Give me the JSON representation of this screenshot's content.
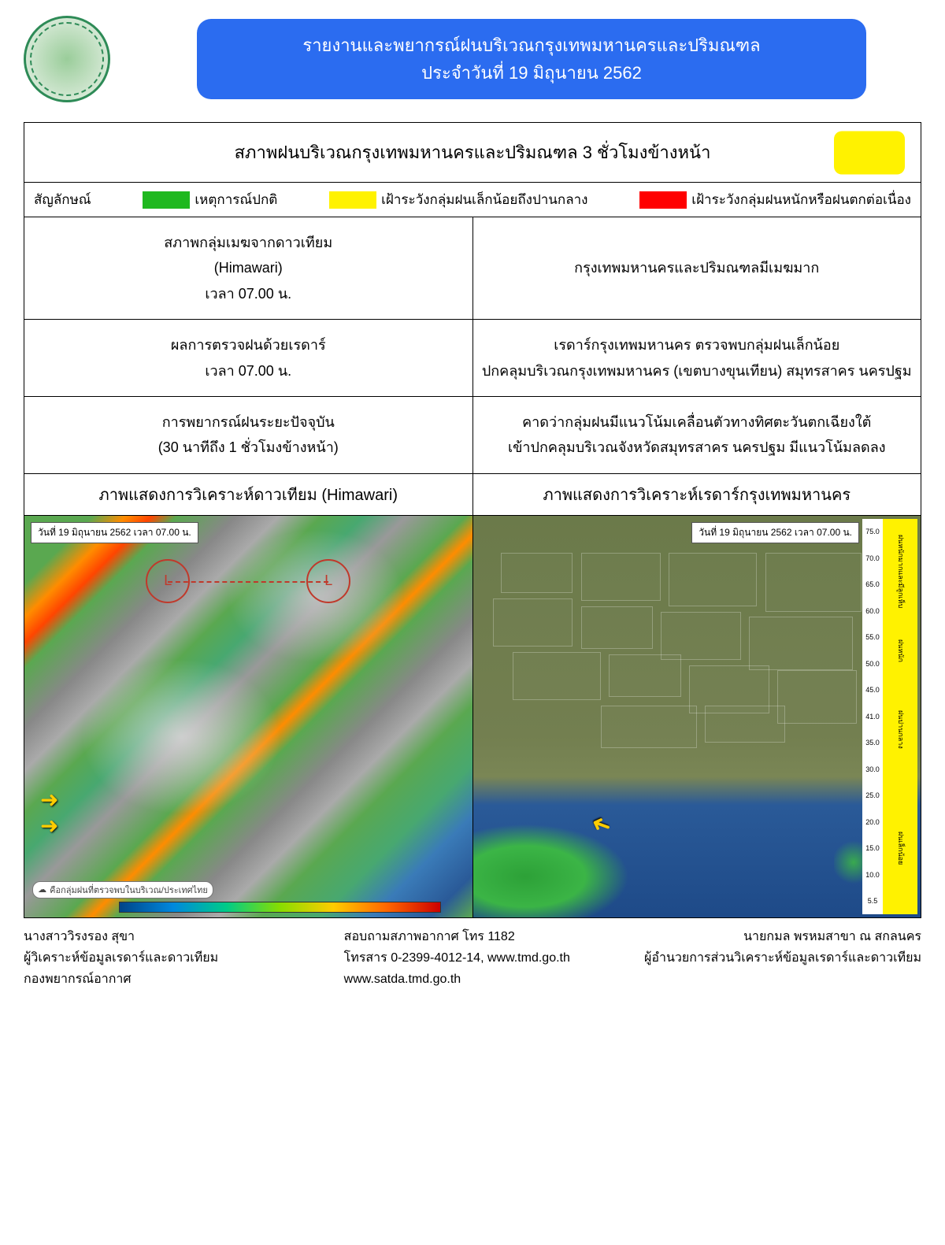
{
  "header": {
    "title_line1": "รายงานและพยากรณ์ฝนบริเวณกรุงเทพมหานครและปริมณฑล",
    "title_line2": "ประจำวันที่ 19 มิถุนายน 2562",
    "banner_bg": "#2b6cf0",
    "banner_fg": "#ffffff"
  },
  "section": {
    "title": "สภาพฝนบริเวณกรุงเทพมหานครและปริมณฑล 3 ชั่วโมงข้างหน้า",
    "badge_color": "#fff200"
  },
  "legend": {
    "label": "สัญลักษณ์",
    "items": [
      {
        "color": "#1fb81f",
        "text": "เหตุการณ์ปกติ"
      },
      {
        "color": "#fff200",
        "text": "เฝ้าระวังกลุ่มฝนเล็กน้อยถึงปานกลาง"
      },
      {
        "color": "#ff0000",
        "text": "เฝ้าระวังกลุ่มฝนหนักหรือฝนตกต่อเนื่อง"
      }
    ]
  },
  "rows": [
    {
      "left_l1": "สภาพกลุ่มเมฆจากดาวเทียม",
      "left_l2": "(Himawari)",
      "left_l3": "เวลา 07.00 น.",
      "right_l1": "กรุงเทพมหานครและปริมณฑลมีเมฆมาก",
      "right_l2": ""
    },
    {
      "left_l1": "ผลการตรวจฝนด้วยเรดาร์",
      "left_l2": "เวลา 07.00 น.",
      "left_l3": "",
      "right_l1": "เรดาร์กรุงเทพมหานคร ตรวจพบกลุ่มฝนเล็กน้อย",
      "right_l2": "ปกคลุมบริเวณกรุงเทพมหานคร (เขตบางขุนเทียน) สมุทรสาคร นครปฐม"
    },
    {
      "left_l1": "การพยากรณ์ฝนระยะปัจจุบัน",
      "left_l2": "(30 นาทีถึง 1 ชั่วโมงข้างหน้า)",
      "left_l3": "",
      "right_l1": "คาดว่ากลุ่มฝนมีแนวโน้มเคลื่อนตัวทางทิศตะวันตกเฉียงใต้",
      "right_l2": "เข้าปกคลุมบริเวณจังหวัดสมุทรสาคร นครปฐม มีแนวโน้มลดลง"
    }
  ],
  "maps": {
    "sat_title": "ภาพแสดงการวิเคราะห์ดาวเทียม (Himawari)",
    "radar_title": "ภาพแสดงการวิเคราะห์เรดาร์กรุงเทพมหานคร",
    "sat_timestamp": "วันที่ 19 มิถุนายน 2562 เวลา 07.00 น.",
    "radar_timestamp": "วันที่ 19 มิถุนายน 2562 เวลา 07.00 น.",
    "sat_cloudnote": "คือกลุ่มฝนที่ตรวจพบในบริเวณ/ประเทศไทย",
    "radar_scale": [
      {
        "v": "75.0",
        "c": "#ffffff"
      },
      {
        "v": "70.0",
        "c": "#f0f0f0"
      },
      {
        "v": "65.0",
        "c": "#e0d0e0"
      },
      {
        "v": "60.0",
        "c": "#d0a0d0"
      },
      {
        "v": "55.0",
        "c": "#ff33cc"
      },
      {
        "v": "50.0",
        "c": "#cc0099"
      },
      {
        "v": "45.0",
        "c": "#ff0000"
      },
      {
        "v": "41.0",
        "c": "#ff6600"
      },
      {
        "v": "35.0",
        "c": "#ffcc00"
      },
      {
        "v": "30.0",
        "c": "#99cc33"
      },
      {
        "v": "25.0",
        "c": "#339933"
      },
      {
        "v": "20.0",
        "c": "#0b7a0b"
      },
      {
        "v": "15.0",
        "c": "#44dd44"
      },
      {
        "v": "10.0",
        "c": "#88ee88"
      },
      {
        "v": "5.5",
        "c": "#fff200"
      }
    ],
    "radar_bands": [
      {
        "text": "ฝนหนักมากและมีลูกเห็บ",
        "c": "#fff200"
      },
      {
        "text": "ฝนหนัก",
        "c": "#fff200"
      },
      {
        "text": "ฝนปานกลาง",
        "c": "#fff200"
      },
      {
        "text": "ฝนเล็กน้อย",
        "c": "#fff200"
      }
    ]
  },
  "footer": {
    "left_l1": "นางสาววิรงรอง  สุขา",
    "left_l2": "ผู้วิเคราะห์ข้อมูลเรดาร์และดาวเทียม",
    "left_l3": "กองพยากรณ์อากาศ",
    "center_l1": "สอบถามสภาพอากาศ  โทร 1182",
    "center_l2": "โทรสาร 0-2399-4012-14, www.tmd.go.th",
    "center_l3": "www.satda.tmd.go.th",
    "right_l1": "นายกมล  พรหมสาขา ณ สกลนคร",
    "right_l2": "ผู้อำนวยการส่วนวิเคราะห์ข้อมูลเรดาร์และดาวเทียม"
  }
}
